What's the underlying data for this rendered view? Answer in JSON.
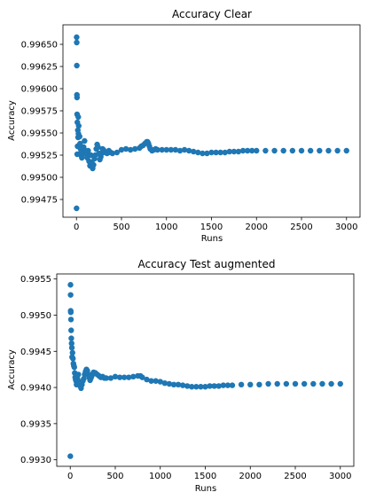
{
  "chart_data": [
    {
      "type": "scatter",
      "title": "Accuracy Clear",
      "xlabel": "Runs",
      "ylabel": "Accuracy",
      "xlim": [
        -150,
        3150
      ],
      "ylim": [
        0.99455,
        0.99672
      ],
      "xticks": [
        0,
        500,
        1000,
        1500,
        2000,
        2500,
        3000
      ],
      "xtick_labels": [
        "0",
        "500",
        "1000",
        "1500",
        "2000",
        "2500",
        "3000"
      ],
      "yticks": [
        0.99475,
        0.995,
        0.99525,
        0.9955,
        0.99575,
        0.996,
        0.99625,
        0.9965
      ],
      "ytick_labels": [
        "0.99475",
        "0.99500",
        "0.99525",
        "0.99550",
        "0.99575",
        "0.99600",
        "0.99625",
        "0.99650"
      ],
      "marker_color": "#1f77b4",
      "series": [
        {
          "x": [
            1,
            2,
            3,
            4,
            5,
            6,
            7,
            8,
            10,
            12,
            15,
            18,
            20,
            22,
            25,
            30,
            35,
            40,
            45,
            50,
            55,
            60,
            70,
            80,
            90,
            100,
            110,
            120,
            130,
            140,
            150,
            160,
            170,
            180,
            190,
            200,
            210,
            220,
            230,
            240,
            250,
            260,
            270,
            280,
            290,
            300,
            320,
            340,
            360,
            380,
            400,
            450,
            500,
            550,
            600,
            650,
            700,
            720,
            740,
            760,
            780,
            790,
            800,
            810,
            820,
            840,
            860,
            880,
            900,
            950,
            1000,
            1050,
            1100,
            1150,
            1200,
            1250,
            1300,
            1350,
            1400,
            1450,
            1500,
            1550,
            1600,
            1650,
            1700,
            1750,
            1800,
            1850,
            1900,
            1950,
            2000,
            2100,
            2200,
            2300,
            2400,
            2500,
            2600,
            2700,
            2800,
            2900,
            3000
          ],
          "y": [
            0.99465,
            0.99658,
            0.99652,
            0.99626,
            0.99593,
            0.9959,
            0.99571,
            0.99526,
            0.99562,
            0.99535,
            0.99553,
            0.99545,
            0.99568,
            0.99549,
            0.99558,
            0.99536,
            0.99546,
            0.99538,
            0.99532,
            0.99528,
            0.99524,
            0.99522,
            0.99527,
            0.99534,
            0.99541,
            0.9953,
            0.99526,
            0.99522,
            0.9953,
            0.99518,
            0.99513,
            0.99525,
            0.99517,
            0.9951,
            0.99514,
            0.99521,
            0.99525,
            0.99532,
            0.99537,
            0.99534,
            0.99527,
            0.9952,
            0.99523,
            0.99527,
            0.99532,
            0.99531,
            0.99528,
            0.99527,
            0.9953,
            0.99528,
            0.99527,
            0.99528,
            0.99531,
            0.99532,
            0.99531,
            0.99532,
            0.99533,
            0.99535,
            0.99536,
            0.99538,
            0.9954,
            0.9954,
            0.99538,
            0.99535,
            0.99532,
            0.9953,
            0.99531,
            0.99532,
            0.99531,
            0.99531,
            0.99531,
            0.99531,
            0.99531,
            0.9953,
            0.99531,
            0.9953,
            0.99529,
            0.99528,
            0.99527,
            0.99527,
            0.99528,
            0.99528,
            0.99528,
            0.99528,
            0.99529,
            0.99529,
            0.99529,
            0.9953,
            0.9953,
            0.9953,
            0.9953,
            0.9953,
            0.9953,
            0.9953,
            0.9953,
            0.9953,
            0.9953,
            0.9953,
            0.9953,
            0.9953,
            0.9953
          ]
        }
      ]
    },
    {
      "type": "scatter",
      "title": "Accuracy Test augmented",
      "xlabel": "Runs",
      "ylabel": "Accuracy",
      "xlim": [
        -150,
        3150
      ],
      "ylim": [
        0.99291,
        0.99557
      ],
      "xticks": [
        0,
        500,
        1000,
        1500,
        2000,
        2500,
        3000
      ],
      "xtick_labels": [
        "0",
        "500",
        "1000",
        "1500",
        "2000",
        "2500",
        "3000"
      ],
      "yticks": [
        0.993,
        0.9935,
        0.994,
        0.9945,
        0.995,
        0.9955
      ],
      "ytick_labels": [
        "0.9930",
        "0.9935",
        "0.9940",
        "0.9945",
        "0.9950",
        "0.9955"
      ],
      "marker_color": "#1f77b4",
      "series": [
        {
          "x": [
            1,
            3,
            4,
            5,
            6,
            8,
            10,
            12,
            15,
            18,
            20,
            25,
            30,
            35,
            40,
            45,
            50,
            55,
            60,
            65,
            70,
            80,
            90,
            100,
            110,
            120,
            130,
            140,
            150,
            160,
            170,
            180,
            190,
            200,
            210,
            220,
            230,
            240,
            250,
            260,
            280,
            300,
            320,
            340,
            360,
            380,
            400,
            450,
            500,
            550,
            600,
            650,
            700,
            750,
            780,
            800,
            850,
            900,
            950,
            1000,
            1050,
            1100,
            1150,
            1200,
            1250,
            1300,
            1350,
            1400,
            1450,
            1500,
            1550,
            1600,
            1650,
            1700,
            1750,
            1800,
            1900,
            2000,
            2100,
            2200,
            2300,
            2400,
            2500,
            2600,
            2700,
            2800,
            2900,
            3000
          ],
          "y": [
            0.99305,
            0.99542,
            0.99528,
            0.99506,
            0.99504,
            0.99494,
            0.99479,
            0.99468,
            0.99461,
            0.99455,
            0.99442,
            0.99448,
            0.9944,
            0.99433,
            0.9943,
            0.99428,
            0.9942,
            0.99414,
            0.99411,
            0.99409,
            0.99404,
            0.99412,
            0.99418,
            0.99408,
            0.99402,
            0.99399,
            0.99404,
            0.99409,
            0.99412,
            0.99418,
            0.99422,
            0.99425,
            0.99423,
            0.99418,
            0.99414,
            0.9941,
            0.99413,
            0.99416,
            0.99419,
            0.99421,
            0.9942,
            0.99418,
            0.99416,
            0.99414,
            0.99415,
            0.99413,
            0.99413,
            0.99413,
            0.99415,
            0.99414,
            0.99414,
            0.99414,
            0.99415,
            0.99416,
            0.99416,
            0.99414,
            0.99411,
            0.99409,
            0.99409,
            0.99408,
            0.99406,
            0.99405,
            0.99404,
            0.99404,
            0.99403,
            0.99402,
            0.99401,
            0.99401,
            0.99401,
            0.99401,
            0.99402,
            0.99402,
            0.99402,
            0.99403,
            0.99403,
            0.99403,
            0.99404,
            0.99404,
            0.99404,
            0.99405,
            0.99405,
            0.99405,
            0.99405,
            0.99405,
            0.99405,
            0.99405,
            0.99405,
            0.99405
          ]
        }
      ]
    }
  ]
}
